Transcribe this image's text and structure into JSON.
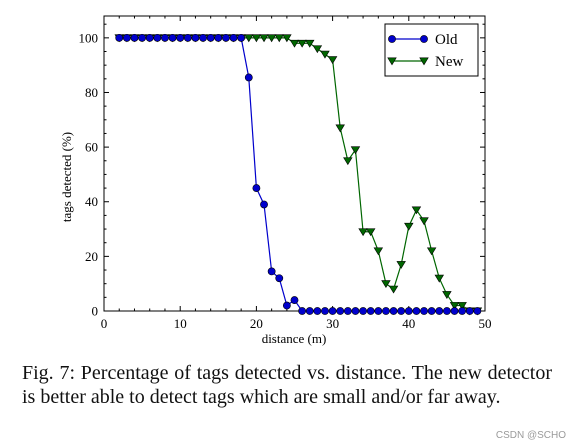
{
  "caption": "Fig. 7: Percentage of tags detected vs. distance. The new detector is better able to detect tags which are small and/or far away.",
  "watermark": "CSDN @SCHO",
  "chart_data": {
    "type": "line",
    "xlabel": "distance (m)",
    "ylabel": "tags detected (%)",
    "xlim": [
      0,
      50
    ],
    "ylim": [
      0,
      108
    ],
    "xticks": [
      0,
      10,
      20,
      30,
      40,
      50
    ],
    "yticks": [
      0,
      20,
      40,
      60,
      80,
      100
    ],
    "grid": false,
    "legend_position": "top-right",
    "x": [
      2,
      3,
      4,
      5,
      6,
      7,
      8,
      9,
      10,
      11,
      12,
      13,
      14,
      15,
      16,
      17,
      18,
      19,
      20,
      21,
      22,
      23,
      24,
      25,
      26,
      27,
      28,
      29,
      30,
      31,
      32,
      33,
      34,
      35,
      36,
      37,
      38,
      39,
      40,
      41,
      42,
      43,
      44,
      45,
      46,
      47,
      48,
      49
    ],
    "series": [
      {
        "name": "Old",
        "color": "#0000cc",
        "marker": "circle",
        "values": [
          100,
          100,
          100,
          100,
          100,
          100,
          100,
          100,
          100,
          100,
          100,
          100,
          100,
          100,
          100,
          100,
          100,
          85.5,
          45,
          39,
          14.5,
          12,
          2,
          4,
          0,
          0,
          0,
          0,
          0,
          0,
          0,
          0,
          0,
          0,
          0,
          0,
          0,
          0,
          0,
          0,
          0,
          0,
          0,
          0,
          0,
          0,
          0,
          0
        ]
      },
      {
        "name": "New",
        "color": "#006600",
        "marker": "triangle-down",
        "values": [
          100,
          100,
          100,
          100,
          100,
          100,
          100,
          100,
          100,
          100,
          100,
          100,
          100,
          100,
          100,
          100,
          100,
          100,
          100,
          100,
          100,
          100,
          100,
          98,
          98,
          98,
          96,
          94,
          92,
          67,
          55,
          59,
          29,
          29,
          22,
          10,
          8,
          17,
          31,
          37,
          33,
          22,
          12,
          6,
          2,
          2,
          0,
          0
        ]
      }
    ]
  }
}
